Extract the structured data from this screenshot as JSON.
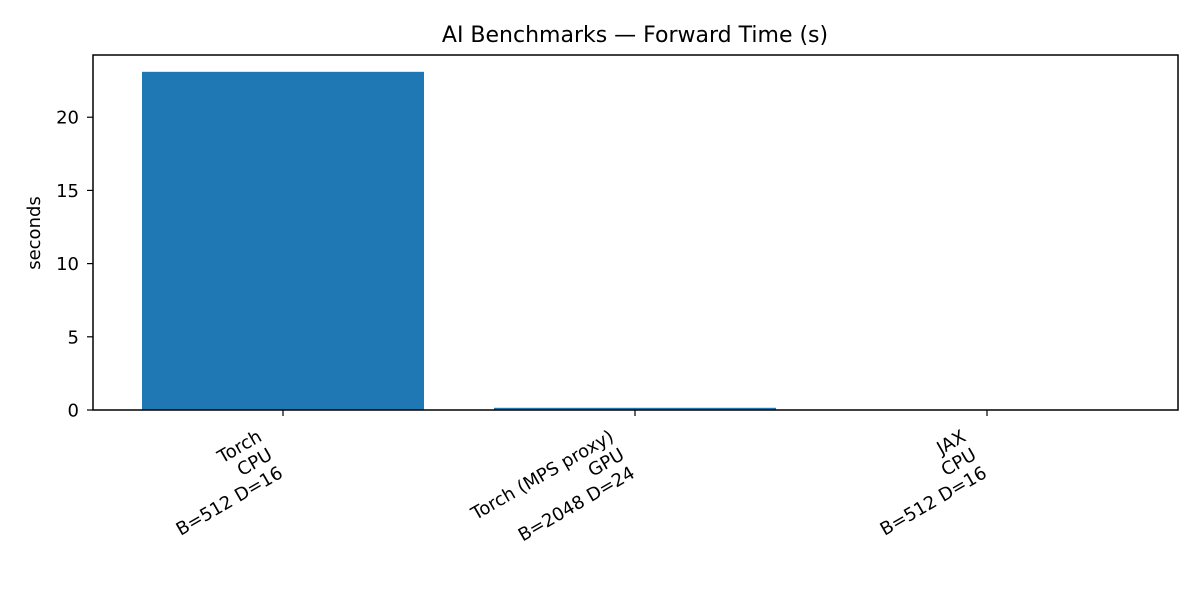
{
  "chart_data": {
    "type": "bar",
    "title": "AI Benchmarks — Forward Time (s)",
    "xlabel": "",
    "ylabel": "seconds",
    "categories": [
      [
        "Torch",
        "CPU",
        "B=512 D=16"
      ],
      [
        "Torch (MPS proxy)",
        "GPU",
        "B=2048 D=24"
      ],
      [
        "JAX",
        "CPU",
        "B=512 D=16"
      ]
    ],
    "values": [
      23.1,
      0.15,
      0.02
    ],
    "ylim": [
      0,
      24.25
    ],
    "yticks": [
      0,
      5,
      10,
      15,
      20
    ],
    "grid": false,
    "legend": "none",
    "bar_color": "#1f77b4"
  }
}
